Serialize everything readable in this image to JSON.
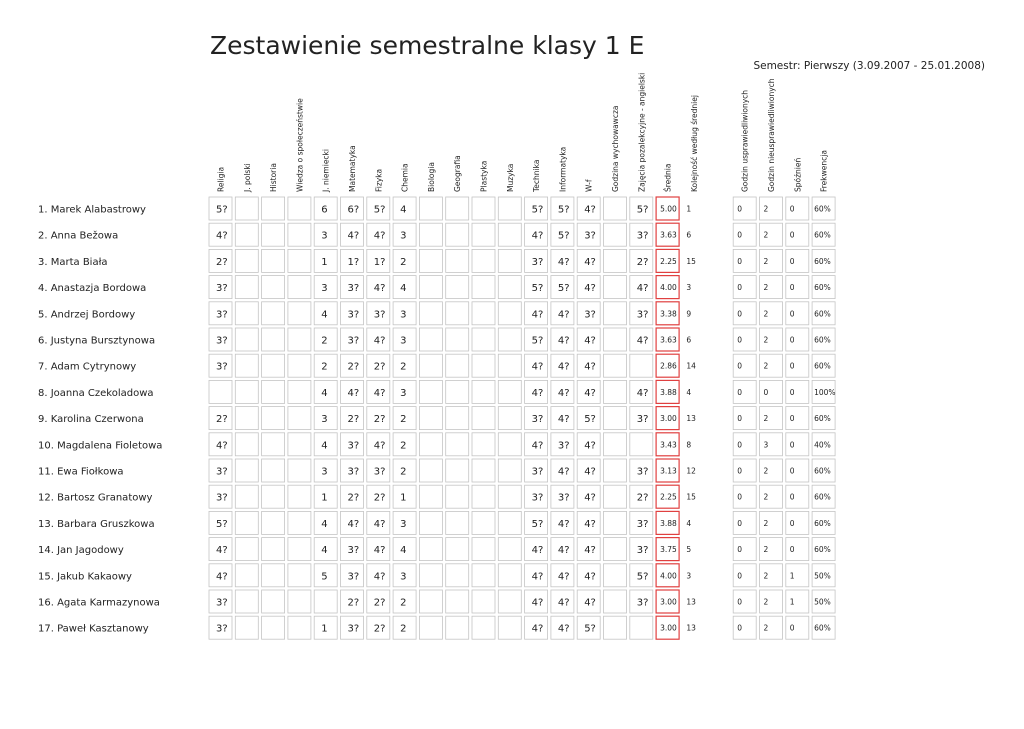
{
  "header": {
    "title": "Zestawienie semestralne klasy 1 E",
    "semester": "Semestr: Pierwszy (3.09.2007 - 25.01.2008)"
  },
  "table": {
    "columns": [
      "Religia",
      "J. polski",
      "Historia",
      "Wiedza o społeczeństwie",
      "J. niemiecki",
      "Matematyka",
      "Fizyka",
      "Chemia",
      "Biologia",
      "Geografia",
      "Plastyka",
      "Muzyka",
      "Technika",
      "Informatyka",
      "W-f",
      "Godzina wychowawcza",
      "Zajęcia pozalekcyjne - angielski",
      "Średnia",
      "Kolejność według średniej",
      "Godzin usprawiedliwionych",
      "Godzin nieusprawiedliwionych",
      "Spóźnień",
      "Frekwencja"
    ],
    "rows": [
      {
        "name": "1. Marek Alabastrowy",
        "cells": [
          "5?",
          null,
          null,
          null,
          "6",
          "6?",
          "5?",
          "4",
          null,
          null,
          null,
          null,
          "5?",
          "5?",
          "4?",
          null,
          "5?",
          "5.00",
          "1",
          "0",
          "2",
          "0",
          "60%"
        ]
      },
      {
        "name": "2. Anna Bežowa",
        "cells": [
          "4?",
          null,
          null,
          null,
          "3",
          "4?",
          "4?",
          "3",
          null,
          null,
          null,
          null,
          "4?",
          "5?",
          "3?",
          null,
          "3?",
          "3.63",
          "6",
          "0",
          "2",
          "0",
          "60%"
        ]
      },
      {
        "name": "3. Marta Biała",
        "cells": [
          "2?",
          null,
          null,
          null,
          "1",
          "1?",
          "1?",
          "2",
          null,
          null,
          null,
          null,
          "3?",
          "4?",
          "4?",
          null,
          "2?",
          "2.25",
          "15",
          "0",
          "2",
          "0",
          "60%"
        ]
      },
      {
        "name": "4. Anastazja Bordowa",
        "cells": [
          "3?",
          null,
          null,
          null,
          "3",
          "3?",
          "4?",
          "4",
          null,
          null,
          null,
          null,
          "5?",
          "5?",
          "4?",
          null,
          "4?",
          "4.00",
          "3",
          "0",
          "2",
          "0",
          "60%"
        ]
      },
      {
        "name": "5. Andrzej Bordowy",
        "cells": [
          "3?",
          null,
          null,
          null,
          "4",
          "3?",
          "3?",
          "3",
          null,
          null,
          null,
          null,
          "4?",
          "4?",
          "3?",
          null,
          "3?",
          "3.38",
          "9",
          "0",
          "2",
          "0",
          "60%"
        ]
      },
      {
        "name": "6. Justyna Bursztynowa",
        "cells": [
          "3?",
          null,
          null,
          null,
          "2",
          "3?",
          "4?",
          "3",
          null,
          null,
          null,
          null,
          "5?",
          "4?",
          "4?",
          null,
          "4?",
          "3.63",
          "6",
          "0",
          "2",
          "0",
          "60%"
        ]
      },
      {
        "name": "7. Adam Cytrynowy",
        "cells": [
          "3?",
          null,
          null,
          null,
          "2",
          "2?",
          "2?",
          "2",
          null,
          null,
          null,
          null,
          "4?",
          "4?",
          "4?",
          null,
          null,
          "2.86",
          "14",
          "0",
          "2",
          "0",
          "60%"
        ]
      },
      {
        "name": "8. Joanna Czekoladowa",
        "cells": [
          null,
          null,
          null,
          null,
          "4",
          "4?",
          "4?",
          "3",
          null,
          null,
          null,
          null,
          "4?",
          "4?",
          "4?",
          null,
          "4?",
          "3.88",
          "4",
          "0",
          "0",
          "0",
          "100%"
        ]
      },
      {
        "name": "9. Karolina Czerwona",
        "cells": [
          "2?",
          null,
          null,
          null,
          "3",
          "2?",
          "2?",
          "2",
          null,
          null,
          null,
          null,
          "3?",
          "4?",
          "5?",
          null,
          "3?",
          "3.00",
          "13",
          "0",
          "2",
          "0",
          "60%"
        ]
      },
      {
        "name": "10. Magdalena Fioletowa",
        "cells": [
          "4?",
          null,
          null,
          null,
          "4",
          "3?",
          "4?",
          "2",
          null,
          null,
          null,
          null,
          "4?",
          "3?",
          "4?",
          null,
          null,
          "3.43",
          "8",
          "0",
          "3",
          "0",
          "40%"
        ]
      },
      {
        "name": "11. Ewa Fiołkowa",
        "cells": [
          "3?",
          null,
          null,
          null,
          "3",
          "3?",
          "3?",
          "2",
          null,
          null,
          null,
          null,
          "3?",
          "4?",
          "4?",
          null,
          "3?",
          "3.13",
          "12",
          "0",
          "2",
          "0",
          "60%"
        ]
      },
      {
        "name": "12. Bartosz Granatowy",
        "cells": [
          "3?",
          null,
          null,
          null,
          "1",
          "2?",
          "2?",
          "1",
          null,
          null,
          null,
          null,
          "3?",
          "3?",
          "4?",
          null,
          "2?",
          "2.25",
          "15",
          "0",
          "2",
          "0",
          "60%"
        ]
      },
      {
        "name": "13. Barbara Gruszkowa",
        "cells": [
          "5?",
          null,
          null,
          null,
          "4",
          "4?",
          "4?",
          "3",
          null,
          null,
          null,
          null,
          "5?",
          "4?",
          "4?",
          null,
          "3?",
          "3.88",
          "4",
          "0",
          "2",
          "0",
          "60%"
        ]
      },
      {
        "name": "14. Jan Jagodowy",
        "cells": [
          "4?",
          null,
          null,
          null,
          "4",
          "3?",
          "4?",
          "4",
          null,
          null,
          null,
          null,
          "4?",
          "4?",
          "4?",
          null,
          "3?",
          "3.75",
          "5",
          "0",
          "2",
          "0",
          "60%"
        ]
      },
      {
        "name": "15. Jakub Kakaowy",
        "cells": [
          "4?",
          null,
          null,
          null,
          "5",
          "3?",
          "4?",
          "3",
          null,
          null,
          null,
          null,
          "4?",
          "4?",
          "4?",
          null,
          "5?",
          "4.00",
          "3",
          "0",
          "2",
          "1",
          "50%"
        ]
      },
      {
        "name": "16. Agata Karmazynowa",
        "cells": [
          "3?",
          null,
          null,
          null,
          null,
          "2?",
          "2?",
          "2",
          null,
          null,
          null,
          null,
          "4?",
          "4?",
          "4?",
          null,
          "3?",
          "3.00",
          "13",
          "0",
          "2",
          "1",
          "50%"
        ]
      },
      {
        "name": "17. Paweł Kasztanowy",
        "cells": [
          "3?",
          null,
          null,
          null,
          "1",
          "3?",
          "2?",
          "2",
          null,
          null,
          null,
          null,
          "4?",
          "4?",
          "5?",
          null,
          null,
          "3.00",
          "13",
          "0",
          "2",
          "0",
          "60%"
        ]
      }
    ]
  }
}
